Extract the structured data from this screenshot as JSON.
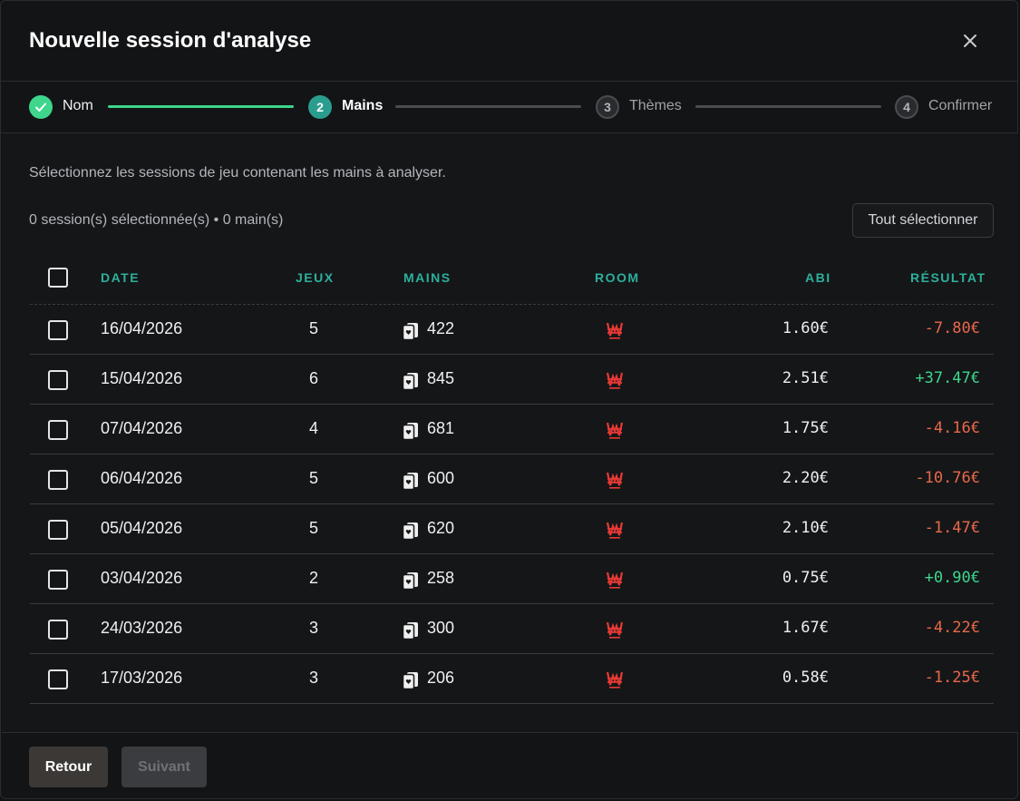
{
  "modal": {
    "title": "Nouvelle session d'analyse",
    "close_icon": "close-icon"
  },
  "stepper": {
    "steps": [
      {
        "number": "",
        "label": "Nom",
        "state": "completed"
      },
      {
        "number": "2",
        "label": "Mains",
        "state": "active"
      },
      {
        "number": "3",
        "label": "Thèmes",
        "state": "pending"
      },
      {
        "number": "4",
        "label": "Confirmer",
        "state": "pending"
      }
    ],
    "colors": {
      "completed": "#3dd68c",
      "active": "#2a9d8f",
      "pending_line": "#4a4c50"
    }
  },
  "content": {
    "instructions": "Sélectionnez les sessions de jeu contenant les mains à analyser.",
    "selection_count": "0 session(s) sélectionnée(s) • 0 main(s)",
    "select_all_label": "Tout sélectionner"
  },
  "table": {
    "headers": {
      "date": "DATE",
      "jeux": "JEUX",
      "mains": "MAINS",
      "room": "ROOM",
      "abi": "ABI",
      "resultat": "RÉSULTAT"
    },
    "room_icon": "winamax-w-icon",
    "mains_icon": "cards-icon",
    "rows": [
      {
        "date": "16/04/2026",
        "jeux": "5",
        "mains": "422",
        "abi": "1.60€",
        "resultat": "-7.80€",
        "positive": false
      },
      {
        "date": "15/04/2026",
        "jeux": "6",
        "mains": "845",
        "abi": "2.51€",
        "resultat": "+37.47€",
        "positive": true
      },
      {
        "date": "07/04/2026",
        "jeux": "4",
        "mains": "681",
        "abi": "1.75€",
        "resultat": "-4.16€",
        "positive": false
      },
      {
        "date": "06/04/2026",
        "jeux": "5",
        "mains": "600",
        "abi": "2.20€",
        "resultat": "-10.76€",
        "positive": false
      },
      {
        "date": "05/04/2026",
        "jeux": "5",
        "mains": "620",
        "abi": "2.10€",
        "resultat": "-1.47€",
        "positive": false
      },
      {
        "date": "03/04/2026",
        "jeux": "2",
        "mains": "258",
        "abi": "0.75€",
        "resultat": "+0.90€",
        "positive": true
      },
      {
        "date": "24/03/2026",
        "jeux": "3",
        "mains": "300",
        "abi": "1.67€",
        "resultat": "-4.22€",
        "positive": false
      },
      {
        "date": "17/03/2026",
        "jeux": "3",
        "mains": "206",
        "abi": "0.58€",
        "resultat": "-1.25€",
        "positive": false
      }
    ],
    "colors": {
      "positive": "#3dd68c",
      "negative": "#e8684a",
      "header": "#2db09c",
      "room_icon": "#e53935"
    }
  },
  "footer": {
    "back_label": "Retour",
    "next_label": "Suivant"
  }
}
